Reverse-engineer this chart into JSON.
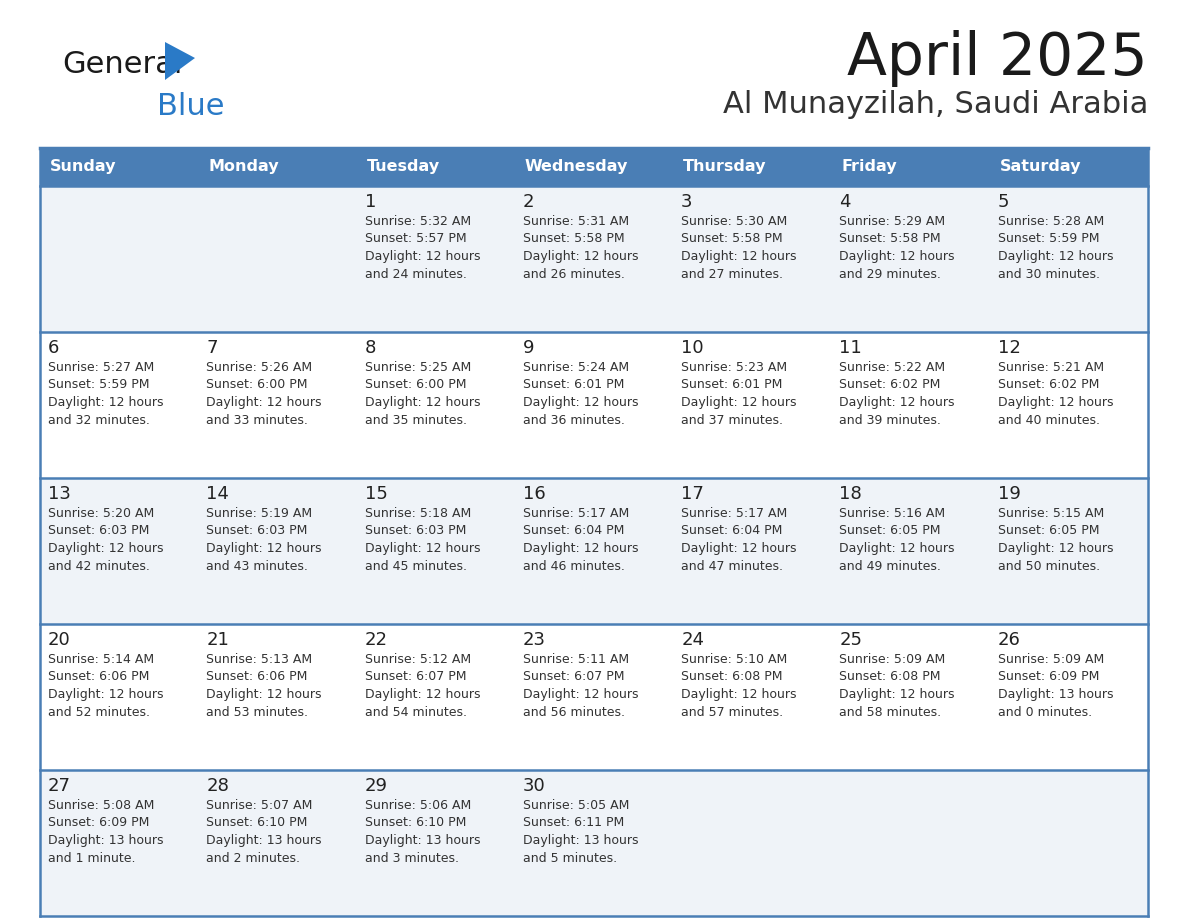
{
  "title": "April 2025",
  "subtitle": "Al Munayzilah, Saudi Arabia",
  "header_bg_color": "#4a7eb5",
  "header_text_color": "#ffffff",
  "row_bg_odd": "#eff3f8",
  "row_bg_even": "#ffffff",
  "border_color": "#4a7eb5",
  "cell_text_color": "#333333",
  "day_num_color": "#222222",
  "day_headers": [
    "Sunday",
    "Monday",
    "Tuesday",
    "Wednesday",
    "Thursday",
    "Friday",
    "Saturday"
  ],
  "logo_general_color": "#1a1a1a",
  "logo_blue_color": "#2a7ac7",
  "logo_triangle_color": "#2a7ac7",
  "title_color": "#1a1a1a",
  "subtitle_color": "#333333",
  "days": [
    {
      "day": 1,
      "col": 2,
      "row": 0,
      "sunrise": "5:32 AM",
      "sunset": "5:57 PM",
      "dl1": "12 hours",
      "dl2": "and 24 minutes."
    },
    {
      "day": 2,
      "col": 3,
      "row": 0,
      "sunrise": "5:31 AM",
      "sunset": "5:58 PM",
      "dl1": "12 hours",
      "dl2": "and 26 minutes."
    },
    {
      "day": 3,
      "col": 4,
      "row": 0,
      "sunrise": "5:30 AM",
      "sunset": "5:58 PM",
      "dl1": "12 hours",
      "dl2": "and 27 minutes."
    },
    {
      "day": 4,
      "col": 5,
      "row": 0,
      "sunrise": "5:29 AM",
      "sunset": "5:58 PM",
      "dl1": "12 hours",
      "dl2": "and 29 minutes."
    },
    {
      "day": 5,
      "col": 6,
      "row": 0,
      "sunrise": "5:28 AM",
      "sunset": "5:59 PM",
      "dl1": "12 hours",
      "dl2": "and 30 minutes."
    },
    {
      "day": 6,
      "col": 0,
      "row": 1,
      "sunrise": "5:27 AM",
      "sunset": "5:59 PM",
      "dl1": "12 hours",
      "dl2": "and 32 minutes."
    },
    {
      "day": 7,
      "col": 1,
      "row": 1,
      "sunrise": "5:26 AM",
      "sunset": "6:00 PM",
      "dl1": "12 hours",
      "dl2": "and 33 minutes."
    },
    {
      "day": 8,
      "col": 2,
      "row": 1,
      "sunrise": "5:25 AM",
      "sunset": "6:00 PM",
      "dl1": "12 hours",
      "dl2": "and 35 minutes."
    },
    {
      "day": 9,
      "col": 3,
      "row": 1,
      "sunrise": "5:24 AM",
      "sunset": "6:01 PM",
      "dl1": "12 hours",
      "dl2": "and 36 minutes."
    },
    {
      "day": 10,
      "col": 4,
      "row": 1,
      "sunrise": "5:23 AM",
      "sunset": "6:01 PM",
      "dl1": "12 hours",
      "dl2": "and 37 minutes."
    },
    {
      "day": 11,
      "col": 5,
      "row": 1,
      "sunrise": "5:22 AM",
      "sunset": "6:02 PM",
      "dl1": "12 hours",
      "dl2": "and 39 minutes."
    },
    {
      "day": 12,
      "col": 6,
      "row": 1,
      "sunrise": "5:21 AM",
      "sunset": "6:02 PM",
      "dl1": "12 hours",
      "dl2": "and 40 minutes."
    },
    {
      "day": 13,
      "col": 0,
      "row": 2,
      "sunrise": "5:20 AM",
      "sunset": "6:03 PM",
      "dl1": "12 hours",
      "dl2": "and 42 minutes."
    },
    {
      "day": 14,
      "col": 1,
      "row": 2,
      "sunrise": "5:19 AM",
      "sunset": "6:03 PM",
      "dl1": "12 hours",
      "dl2": "and 43 minutes."
    },
    {
      "day": 15,
      "col": 2,
      "row": 2,
      "sunrise": "5:18 AM",
      "sunset": "6:03 PM",
      "dl1": "12 hours",
      "dl2": "and 45 minutes."
    },
    {
      "day": 16,
      "col": 3,
      "row": 2,
      "sunrise": "5:17 AM",
      "sunset": "6:04 PM",
      "dl1": "12 hours",
      "dl2": "and 46 minutes."
    },
    {
      "day": 17,
      "col": 4,
      "row": 2,
      "sunrise": "5:17 AM",
      "sunset": "6:04 PM",
      "dl1": "12 hours",
      "dl2": "and 47 minutes."
    },
    {
      "day": 18,
      "col": 5,
      "row": 2,
      "sunrise": "5:16 AM",
      "sunset": "6:05 PM",
      "dl1": "12 hours",
      "dl2": "and 49 minutes."
    },
    {
      "day": 19,
      "col": 6,
      "row": 2,
      "sunrise": "5:15 AM",
      "sunset": "6:05 PM",
      "dl1": "12 hours",
      "dl2": "and 50 minutes."
    },
    {
      "day": 20,
      "col": 0,
      "row": 3,
      "sunrise": "5:14 AM",
      "sunset": "6:06 PM",
      "dl1": "12 hours",
      "dl2": "and 52 minutes."
    },
    {
      "day": 21,
      "col": 1,
      "row": 3,
      "sunrise": "5:13 AM",
      "sunset": "6:06 PM",
      "dl1": "12 hours",
      "dl2": "and 53 minutes."
    },
    {
      "day": 22,
      "col": 2,
      "row": 3,
      "sunrise": "5:12 AM",
      "sunset": "6:07 PM",
      "dl1": "12 hours",
      "dl2": "and 54 minutes."
    },
    {
      "day": 23,
      "col": 3,
      "row": 3,
      "sunrise": "5:11 AM",
      "sunset": "6:07 PM",
      "dl1": "12 hours",
      "dl2": "and 56 minutes."
    },
    {
      "day": 24,
      "col": 4,
      "row": 3,
      "sunrise": "5:10 AM",
      "sunset": "6:08 PM",
      "dl1": "12 hours",
      "dl2": "and 57 minutes."
    },
    {
      "day": 25,
      "col": 5,
      "row": 3,
      "sunrise": "5:09 AM",
      "sunset": "6:08 PM",
      "dl1": "12 hours",
      "dl2": "and 58 minutes."
    },
    {
      "day": 26,
      "col": 6,
      "row": 3,
      "sunrise": "5:09 AM",
      "sunset": "6:09 PM",
      "dl1": "13 hours",
      "dl2": "and 0 minutes."
    },
    {
      "day": 27,
      "col": 0,
      "row": 4,
      "sunrise": "5:08 AM",
      "sunset": "6:09 PM",
      "dl1": "13 hours",
      "dl2": "and 1 minute."
    },
    {
      "day": 28,
      "col": 1,
      "row": 4,
      "sunrise": "5:07 AM",
      "sunset": "6:10 PM",
      "dl1": "13 hours",
      "dl2": "and 2 minutes."
    },
    {
      "day": 29,
      "col": 2,
      "row": 4,
      "sunrise": "5:06 AM",
      "sunset": "6:10 PM",
      "dl1": "13 hours",
      "dl2": "and 3 minutes."
    },
    {
      "day": 30,
      "col": 3,
      "row": 4,
      "sunrise": "5:05 AM",
      "sunset": "6:11 PM",
      "dl1": "13 hours",
      "dl2": "and 5 minutes."
    }
  ]
}
